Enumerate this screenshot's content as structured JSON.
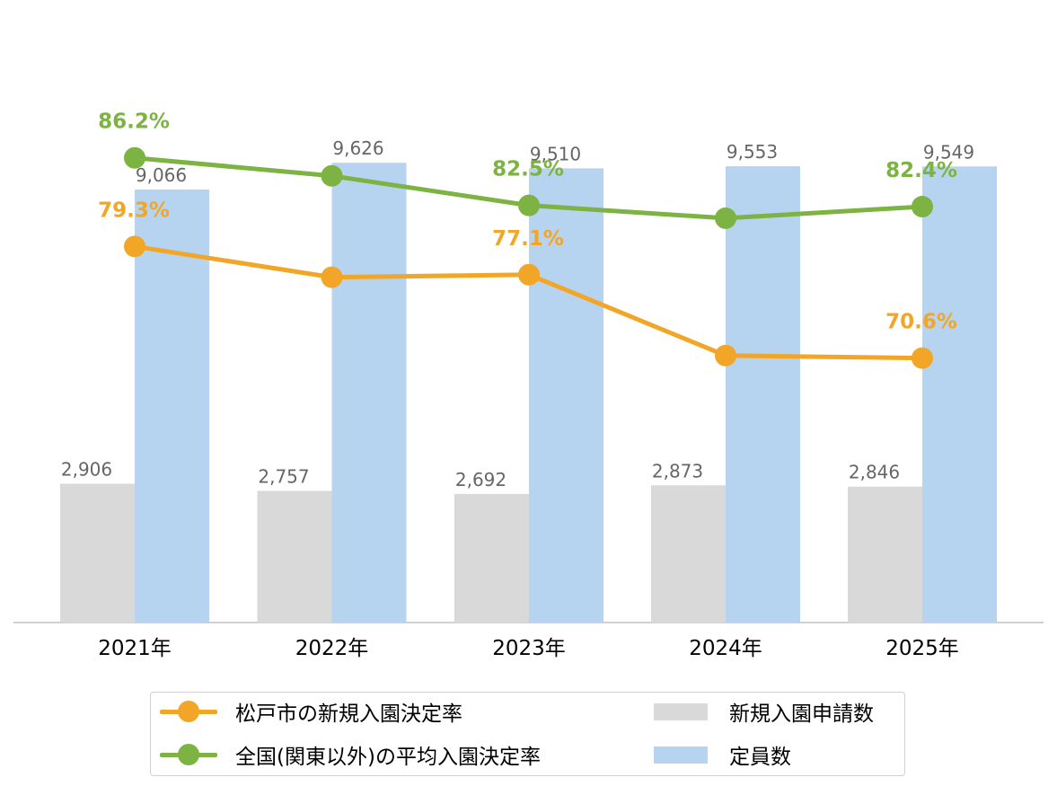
{
  "chart_data": {
    "type": "bar",
    "categories": [
      "2021年",
      "2022年",
      "2023年",
      "2024年",
      "2025年"
    ],
    "bar_series": [
      {
        "name": "新規入園申請数",
        "color": "#d9d9d9",
        "values": [
          2906,
          2757,
          2692,
          2873,
          2846
        ],
        "labels": [
          "2,906",
          "2,757",
          "2,692",
          "2,873",
          "2,846"
        ]
      },
      {
        "name": "定員数",
        "color": "#b6d4ef",
        "values": [
          9066,
          9626,
          9510,
          9553,
          9549
        ],
        "labels": [
          "9,066",
          "9,626",
          "9,510",
          "9,553",
          "9,549"
        ]
      }
    ],
    "line_series": [
      {
        "name": "松戸市の新規入園決定率",
        "color": "#f2a628",
        "values": [
          79.3,
          76.9,
          77.1,
          70.8,
          70.6
        ],
        "data_labels": [
          "79.3%",
          "",
          "77.1%",
          "",
          "70.6%"
        ]
      },
      {
        "name": "全国(関東以外)の平均入園決定率",
        "color": "#7cb342",
        "values": [
          86.2,
          84.8,
          82.5,
          81.5,
          82.4
        ],
        "data_labels": [
          "86.2%",
          "",
          "82.5%",
          "",
          "82.4%"
        ]
      }
    ],
    "bar_axis": {
      "ylim": [
        0,
        12000
      ]
    },
    "line_axis": {
      "ylim": [
        50,
        95
      ]
    },
    "legend": {
      "position": "bottom"
    },
    "grid": false
  }
}
